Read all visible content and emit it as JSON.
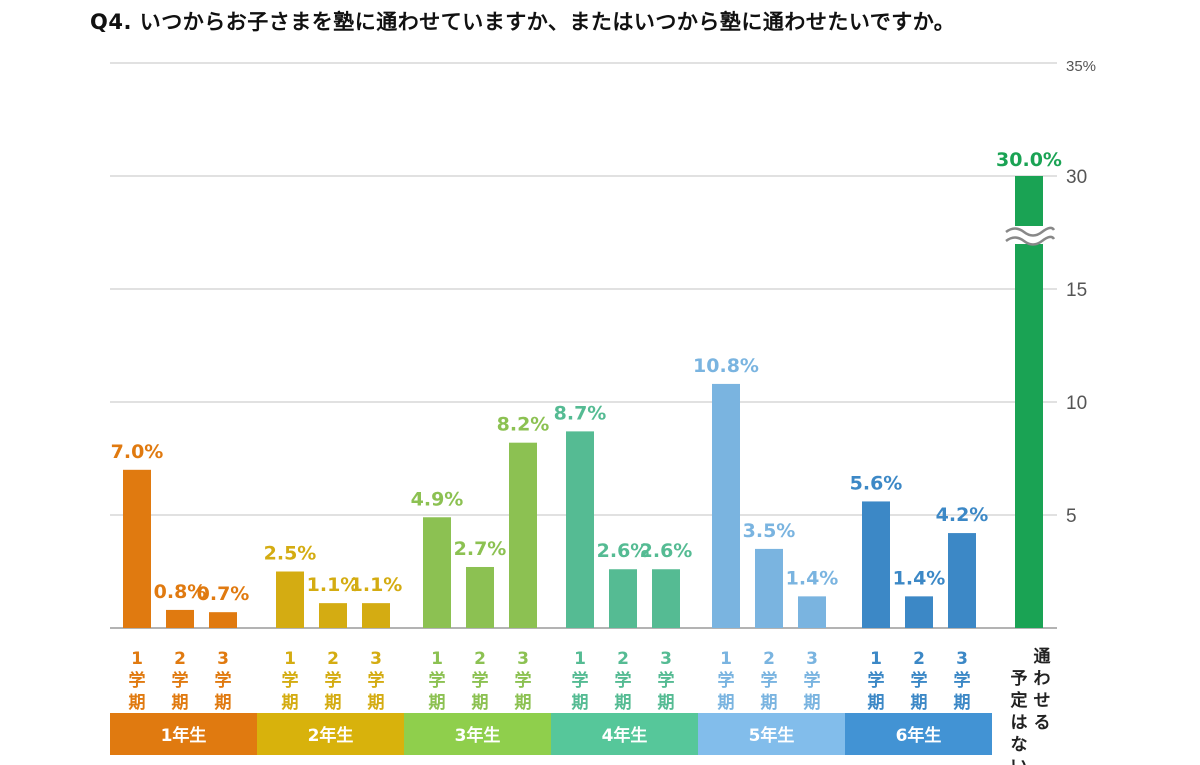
{
  "title": "Q4. いつからお子さまを塾に通わせていますか、またはいつから塾に通わせたいですか。",
  "chart_data": {
    "type": "bar",
    "ylim": [
      0,
      35
    ],
    "axis_break": true,
    "grid": true,
    "y_ticks": [
      "5",
      "10",
      "15",
      "30",
      "35%"
    ],
    "groups": [
      {
        "label": "1年生",
        "color": "#e07a10",
        "band_color": "#e07a10",
        "categories": [
          "1学期",
          "2学期",
          "3学期"
        ],
        "values": [
          7.0,
          0.8,
          0.7
        ],
        "value_labels": [
          "7.0%",
          "0.8%",
          "0.7%"
        ]
      },
      {
        "label": "2年生",
        "color": "#d4ac12",
        "band_color": "#d8b20c",
        "categories": [
          "1学期",
          "2学期",
          "3学期"
        ],
        "values": [
          2.5,
          1.1,
          1.1
        ],
        "value_labels": [
          "2.5%",
          "1.1%",
          "1.1%"
        ]
      },
      {
        "label": "3年生",
        "color": "#8cc152",
        "band_color": "#8fcf4c",
        "categories": [
          "1学期",
          "2学期",
          "3学期"
        ],
        "values": [
          4.9,
          2.7,
          8.2
        ],
        "value_labels": [
          "4.9%",
          "2.7%",
          "8.2%"
        ]
      },
      {
        "label": "4年生",
        "color": "#55bb93",
        "band_color": "#56c79a",
        "categories": [
          "1学期",
          "2学期",
          "3学期"
        ],
        "values": [
          8.7,
          2.6,
          2.6
        ],
        "value_labels": [
          "8.7%",
          "2.6%",
          "2.6%"
        ]
      },
      {
        "label": "5年生",
        "color": "#7ab4e0",
        "band_color": "#82bdeb",
        "categories": [
          "1学期",
          "2学期",
          "3学期"
        ],
        "values": [
          10.8,
          3.5,
          1.4
        ],
        "value_labels": [
          "10.8%",
          "3.5%",
          "1.4%"
        ]
      },
      {
        "label": "6年生",
        "color": "#3c88c6",
        "band_color": "#4293d4",
        "categories": [
          "1学期",
          "2学期",
          "3学期"
        ],
        "values": [
          5.6,
          1.4,
          4.2
        ],
        "value_labels": [
          "5.6%",
          "1.4%",
          "4.2%"
        ]
      }
    ],
    "extra": {
      "category": "通わせる予定はない",
      "value": 30.0,
      "value_label": "30.0%",
      "color": "#1aa354"
    }
  }
}
